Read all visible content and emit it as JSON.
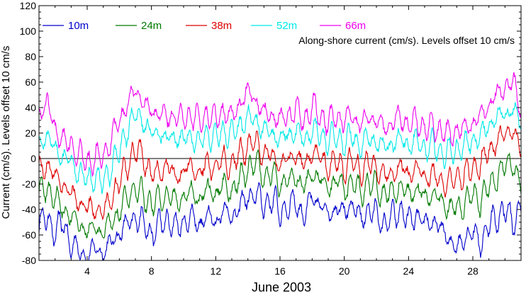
{
  "chart_data": {
    "type": "line",
    "annotation": "Along-shore current (cm/s). Levels offset 10 cm/s",
    "xlabel": "June 2003",
    "ylabel": "Current (cm/s). Levels offset 10 cm/s",
    "xlim": [
      1,
      31
    ],
    "ylim": [
      -80,
      120
    ],
    "xticks": [
      4,
      8,
      12,
      16,
      20,
      24,
      28
    ],
    "yticks": [
      -80,
      -60,
      -40,
      -20,
      0,
      20,
      40,
      60,
      80,
      100,
      120
    ],
    "zero_line": true,
    "legend_position": "top",
    "series": [
      {
        "name": "10m",
        "color": "#0000cc",
        "x": [
          1,
          1.5,
          2,
          2.5,
          3,
          3.5,
          4,
          4.5,
          5,
          5.5,
          6,
          6.5,
          7,
          7.5,
          8,
          8.5,
          9,
          9.5,
          10,
          10.5,
          11,
          11.5,
          12,
          12.5,
          13,
          13.5,
          14,
          14.5,
          15,
          15.5,
          16,
          16.5,
          17,
          17.5,
          18,
          18.5,
          19,
          19.5,
          20,
          20.5,
          21,
          21.5,
          22,
          22.5,
          23,
          23.5,
          24,
          24.5,
          25,
          25.5,
          26,
          26.5,
          27,
          27.5,
          28,
          28.5,
          29,
          29.5,
          30,
          30.5,
          31
        ],
        "values": [
          -52,
          -46,
          -58,
          -50,
          -68,
          -72,
          -78,
          -70,
          -74,
          -66,
          -58,
          -52,
          -46,
          -50,
          -60,
          -52,
          -48,
          -55,
          -50,
          -46,
          -52,
          -44,
          -50,
          -40,
          -46,
          -38,
          -30,
          -28,
          -36,
          -32,
          -42,
          -38,
          -34,
          -46,
          -30,
          -36,
          -44,
          -38,
          -42,
          -36,
          -48,
          -40,
          -44,
          -52,
          -46,
          -40,
          -50,
          -44,
          -52,
          -48,
          -56,
          -62,
          -72,
          -60,
          -58,
          -66,
          -52,
          -46,
          -40,
          -50,
          -38
        ]
      },
      {
        "name": "24m",
        "color": "#007a00",
        "x": [
          1,
          1.5,
          2,
          2.5,
          3,
          3.5,
          4,
          4.5,
          5,
          5.5,
          6,
          6.5,
          7,
          7.5,
          8,
          8.5,
          9,
          9.5,
          10,
          10.5,
          11,
          11.5,
          12,
          12.5,
          13,
          13.5,
          14,
          14.5,
          15,
          15.5,
          16,
          16.5,
          17,
          17.5,
          18,
          18.5,
          19,
          19.5,
          20,
          20.5,
          21,
          21.5,
          22,
          22.5,
          23,
          23.5,
          24,
          24.5,
          25,
          25.5,
          26,
          26.5,
          27,
          27.5,
          28,
          28.5,
          29,
          29.5,
          30,
          30.5,
          31
        ],
        "values": [
          -28,
          -22,
          -32,
          -38,
          -46,
          -50,
          -58,
          -54,
          -60,
          -48,
          -42,
          -30,
          -24,
          -28,
          -36,
          -32,
          -28,
          -34,
          -30,
          -26,
          -32,
          -24,
          -28,
          -20,
          -26,
          -16,
          -8,
          -4,
          -14,
          -12,
          -20,
          -18,
          -12,
          -24,
          -10,
          -16,
          -22,
          -18,
          -24,
          -18,
          -26,
          -20,
          -22,
          -30,
          -26,
          -22,
          -28,
          -24,
          -30,
          -28,
          -34,
          -38,
          -40,
          -34,
          -30,
          -32,
          -22,
          -14,
          -6,
          -2,
          -24
        ]
      },
      {
        "name": "38m",
        "color": "#dd0000",
        "x": [
          1,
          1.5,
          2,
          2.5,
          3,
          3.5,
          4,
          4.5,
          5,
          5.5,
          6,
          6.5,
          7,
          7.5,
          8,
          8.5,
          9,
          9.5,
          10,
          10.5,
          11,
          11.5,
          12,
          12.5,
          13,
          13.5,
          14,
          14.5,
          15,
          15.5,
          16,
          16.5,
          17,
          17.5,
          18,
          18.5,
          19,
          19.5,
          20,
          20.5,
          21,
          21.5,
          22,
          22.5,
          23,
          23.5,
          24,
          24.5,
          25,
          25.5,
          26,
          26.5,
          27,
          27.5,
          28,
          28.5,
          29,
          29.5,
          30,
          30.5,
          31
        ],
        "values": [
          -10,
          -4,
          -14,
          -20,
          -28,
          -34,
          -40,
          -38,
          -44,
          -30,
          -20,
          -4,
          6,
          2,
          -14,
          -10,
          -6,
          -14,
          -10,
          -6,
          -12,
          -4,
          -8,
          0,
          -6,
          4,
          10,
          12,
          4,
          2,
          -4,
          -2,
          4,
          -6,
          6,
          0,
          -6,
          -2,
          -8,
          -2,
          -10,
          -4,
          -6,
          -14,
          -10,
          -6,
          -12,
          -8,
          -14,
          -12,
          -18,
          -20,
          -14,
          -12,
          -8,
          -4,
          6,
          14,
          20,
          24,
          4
        ]
      },
      {
        "name": "52m",
        "color": "#00e8e8",
        "x": [
          1,
          1.5,
          2,
          2.5,
          3,
          3.5,
          4,
          4.5,
          5,
          5.5,
          6,
          6.5,
          7,
          7.5,
          8,
          8.5,
          9,
          9.5,
          10,
          10.5,
          11,
          11.5,
          12,
          12.5,
          13,
          13.5,
          14,
          14.5,
          15,
          15.5,
          16,
          16.5,
          17,
          17.5,
          18,
          18.5,
          19,
          19.5,
          20,
          20.5,
          21,
          21.5,
          22,
          22.5,
          23,
          23.5,
          24,
          24.5,
          25,
          25.5,
          26,
          26.5,
          27,
          27.5,
          28,
          28.5,
          29,
          29.5,
          30,
          30.5,
          31
        ],
        "values": [
          12,
          18,
          8,
          2,
          -4,
          -10,
          -18,
          -14,
          -20,
          -6,
          4,
          24,
          34,
          30,
          18,
          22,
          14,
          18,
          14,
          18,
          12,
          20,
          16,
          22,
          18,
          26,
          32,
          30,
          22,
          20,
          16,
          18,
          22,
          14,
          24,
          18,
          14,
          18,
          12,
          18,
          10,
          16,
          14,
          8,
          12,
          16,
          10,
          14,
          8,
          10,
          6,
          4,
          8,
          10,
          14,
          18,
          26,
          32,
          36,
          38,
          28
        ]
      },
      {
        "name": "66m",
        "color": "#ee00ee",
        "x": [
          1,
          1.5,
          2,
          2.5,
          3,
          3.5,
          4,
          4.5,
          5,
          5.5,
          6,
          6.5,
          7,
          7.5,
          8,
          8.5,
          9,
          9.5,
          10,
          10.5,
          11,
          11.5,
          12,
          12.5,
          13,
          13.5,
          14,
          14.5,
          15,
          15.5,
          16,
          16.5,
          17,
          17.5,
          18,
          18.5,
          19,
          19.5,
          20,
          20.5,
          21,
          21.5,
          22,
          22.5,
          23,
          23.5,
          24,
          24.5,
          25,
          25.5,
          26,
          26.5,
          27,
          27.5,
          28,
          28.5,
          29,
          29.5,
          30,
          30.5,
          31
        ],
        "values": [
          36,
          44,
          24,
          14,
          10,
          4,
          -4,
          0,
          2,
          16,
          28,
          44,
          52,
          46,
          34,
          38,
          30,
          36,
          30,
          36,
          28,
          36,
          30,
          38,
          32,
          44,
          52,
          46,
          36,
          34,
          30,
          34,
          38,
          30,
          40,
          34,
          28,
          34,
          28,
          34,
          26,
          32,
          30,
          24,
          28,
          32,
          26,
          30,
          24,
          26,
          22,
          18,
          22,
          24,
          28,
          34,
          42,
          50,
          56,
          60,
          40
        ]
      }
    ]
  }
}
